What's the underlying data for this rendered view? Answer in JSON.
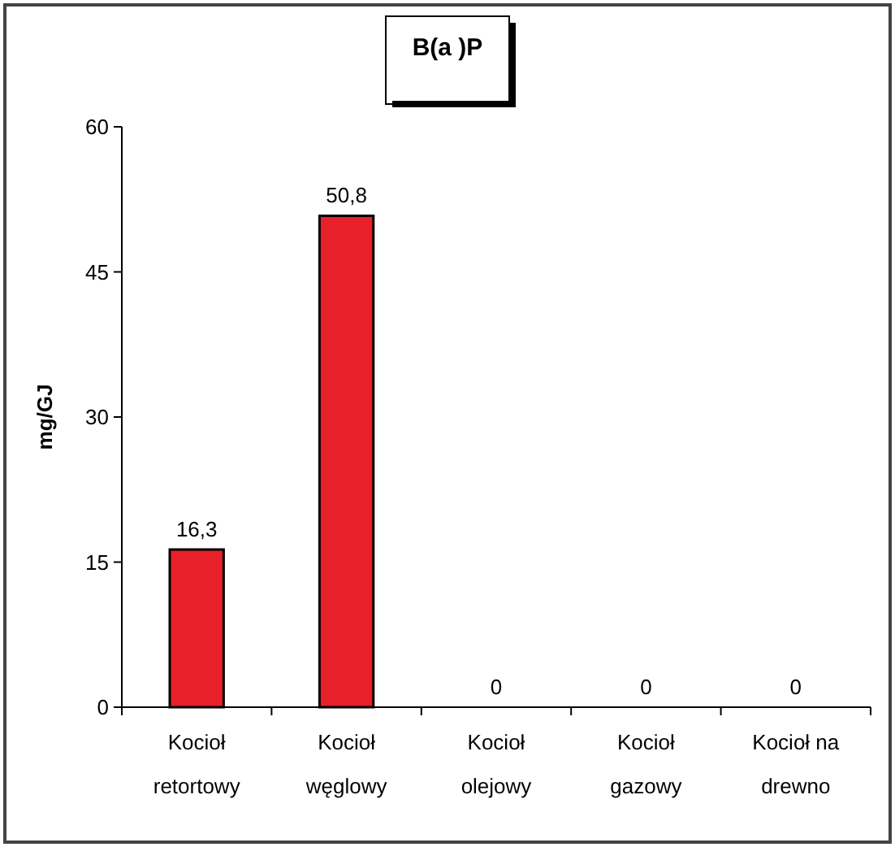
{
  "chart_data": {
    "type": "bar",
    "title": "B(a )P",
    "ylabel": "mg/GJ",
    "categories": [
      "Kocioł retortowy",
      "Kocioł węglowy",
      "Kocioł olejowy",
      "Kocioł gazowy",
      "Kocioł na drewno"
    ],
    "values": [
      16.3,
      50.8,
      0,
      0,
      0
    ],
    "value_labels": [
      "16,3",
      "50,8",
      "0",
      "0",
      "0"
    ],
    "color": "#e8202a",
    "ylim": [
      0,
      60
    ],
    "yticks": [
      0,
      15,
      30,
      45,
      60
    ],
    "grid": false
  }
}
